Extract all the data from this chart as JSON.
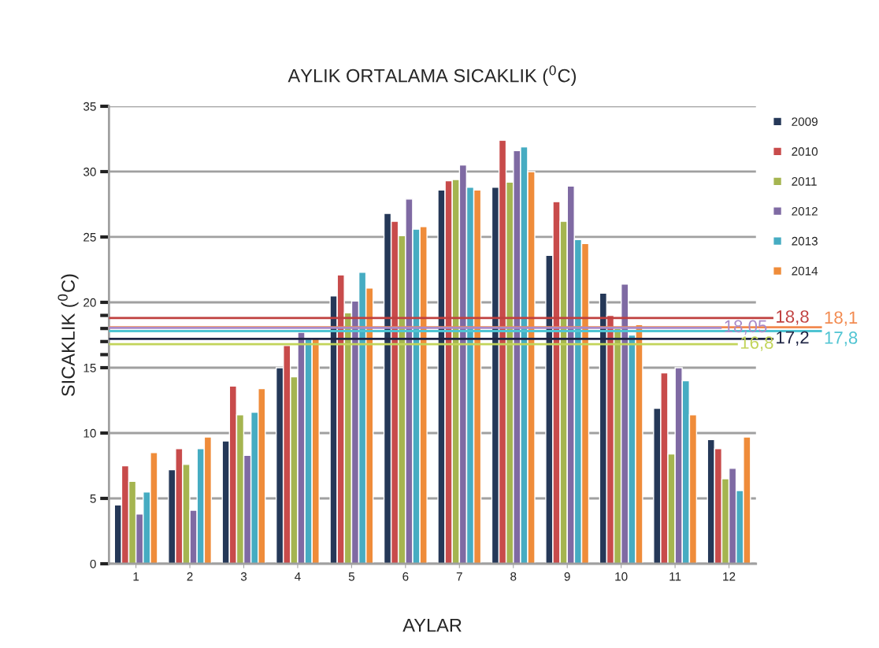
{
  "chart_data": {
    "type": "bar",
    "title": "AYLIK ORTALAMA SICAKLIK ($^{0}$C)",
    "xlabel": "AYLAR",
    "ylabel": "SICAKLIK ($^{0}$C)",
    "categories": [
      "1",
      "2",
      "3",
      "4",
      "5",
      "6",
      "7",
      "8",
      "9",
      "10",
      "11",
      "12"
    ],
    "series": [
      {
        "name": "2009",
        "color": "#253858",
        "values": [
          4.5,
          7.2,
          9.4,
          15.0,
          20.5,
          26.8,
          28.6,
          28.8,
          23.6,
          20.7,
          11.9,
          9.5
        ]
      },
      {
        "name": "2010",
        "color": "#c84b4b",
        "values": [
          7.5,
          8.8,
          13.6,
          16.7,
          22.1,
          26.2,
          29.3,
          32.4,
          27.7,
          19.0,
          14.6,
          8.8
        ]
      },
      {
        "name": "2011",
        "color": "#a5b550",
        "values": [
          6.3,
          7.6,
          11.4,
          14.3,
          19.2,
          25.1,
          29.4,
          29.2,
          26.2,
          18.0,
          8.4,
          6.5
        ]
      },
      {
        "name": "2012",
        "color": "#7f6aa3",
        "values": [
          3.8,
          4.1,
          8.3,
          17.7,
          20.1,
          27.9,
          30.5,
          31.6,
          28.9,
          21.4,
          15.0,
          7.3
        ]
      },
      {
        "name": "2013",
        "color": "#46acc2",
        "values": [
          5.5,
          8.8,
          11.6,
          17.2,
          22.3,
          25.6,
          28.8,
          31.9,
          24.8,
          17.5,
          14.0,
          5.6
        ]
      },
      {
        "name": "2014",
        "color": "#ef8c3a",
        "values": [
          8.5,
          9.7,
          13.4,
          17.3,
          21.1,
          25.8,
          28.6,
          30.0,
          24.5,
          18.3,
          11.4,
          9.7
        ]
      }
    ],
    "ylim": [
      0,
      35
    ],
    "yticks": [
      0,
      5,
      10,
      15,
      {
        "value": 16,
        "label": null
      },
      {
        "value": 17,
        "label": null
      },
      {
        "value": 18,
        "label": null
      },
      {
        "value": 19,
        "label": null
      },
      20,
      25,
      30,
      35
    ],
    "ref_lines": [
      {
        "axis": "y",
        "value": 18.8,
        "label": "18,8",
        "color": "#c0403f"
      },
      {
        "axis": "y",
        "value": 18.1,
        "label": "18,1",
        "color": "#f28a50"
      },
      {
        "axis": "y",
        "value": 18.05,
        "label": "18,05",
        "color": "#a98ac8"
      },
      {
        "axis": "y",
        "value": 17.8,
        "label": "17,8",
        "color": "#4fc4d2"
      },
      {
        "axis": "y",
        "value": 17.2,
        "label": "17,2",
        "color": "#1f2544"
      },
      {
        "axis": "y",
        "value": 16.8,
        "label": "16,8",
        "color": "#c2d45a"
      }
    ],
    "grid": "y",
    "legend": "right"
  }
}
